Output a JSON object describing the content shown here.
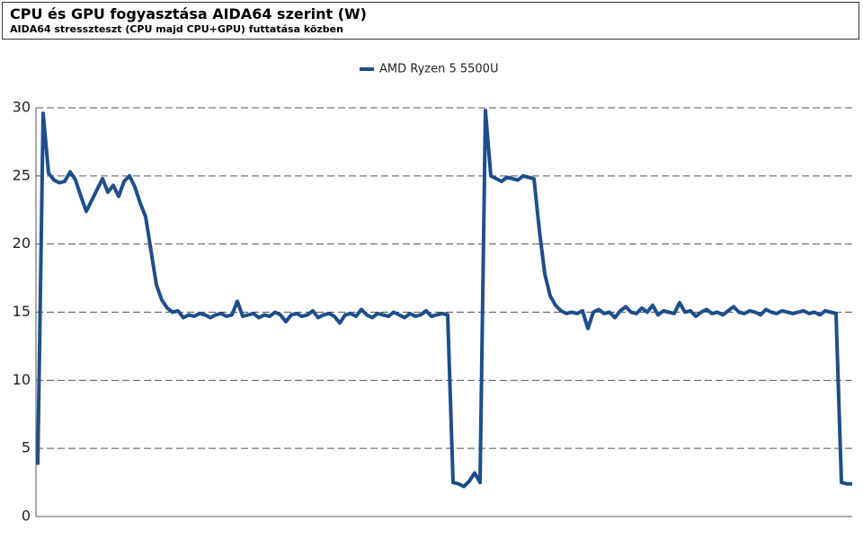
{
  "chart_data": {
    "type": "line",
    "title": "CPU és GPU fogyasztása AIDA64 szerint (W)",
    "subtitle": "AIDA64 stresszteszt (CPU majd CPU+GPU) futtatása közben",
    "ylim": [
      0,
      30
    ],
    "yticks": [
      0,
      5,
      10,
      15,
      20,
      25,
      30
    ],
    "grid": true,
    "legend": "top",
    "series": [
      {
        "name": "AMD Ryzen 5 5500U",
        "color": "#1f4e8c",
        "values": [
          3.8,
          29.6,
          25.2,
          24.7,
          24.5,
          24.6,
          25.3,
          24.7,
          23.5,
          22.4,
          23.2,
          24.0,
          24.8,
          23.8,
          24.3,
          23.5,
          24.6,
          25.0,
          24.2,
          23.0,
          22.0,
          19.5,
          17.0,
          15.9,
          15.3,
          15.0,
          15.1,
          14.6,
          14.8,
          14.7,
          14.9,
          14.8,
          14.6,
          14.8,
          14.9,
          14.7,
          14.8,
          15.8,
          14.7,
          14.8,
          14.9,
          14.6,
          14.8,
          14.7,
          15.0,
          14.8,
          14.3,
          14.8,
          14.9,
          14.7,
          14.8,
          15.1,
          14.6,
          14.8,
          14.9,
          14.7,
          14.2,
          14.8,
          14.9,
          14.7,
          15.2,
          14.8,
          14.6,
          14.9,
          14.8,
          14.7,
          15.0,
          14.8,
          14.6,
          14.9,
          14.7,
          14.8,
          15.1,
          14.7,
          14.8,
          14.9,
          14.8,
          2.5,
          2.4,
          2.2,
          2.6,
          3.2,
          2.5,
          29.8,
          25.0,
          24.8,
          24.6,
          24.9,
          24.8,
          24.7,
          25.0,
          24.9,
          24.8,
          21.0,
          17.8,
          16.2,
          15.5,
          15.1,
          14.9,
          15.0,
          14.9,
          15.1,
          13.8,
          15.0,
          15.2,
          14.9,
          15.0,
          14.6,
          15.1,
          15.4,
          15.0,
          14.9,
          15.3,
          15.0,
          15.5,
          14.8,
          15.1,
          15.0,
          14.9,
          15.7,
          15.0,
          15.1,
          14.7,
          15.0,
          15.2,
          14.9,
          15.0,
          14.8,
          15.1,
          15.4,
          15.0,
          14.9,
          15.1,
          15.0,
          14.8,
          15.2,
          15.0,
          14.9,
          15.1,
          15.0,
          14.9,
          15.0,
          15.1,
          14.9,
          15.0,
          14.8,
          15.1,
          15.0,
          14.9,
          2.5,
          2.4,
          2.4
        ]
      }
    ]
  }
}
